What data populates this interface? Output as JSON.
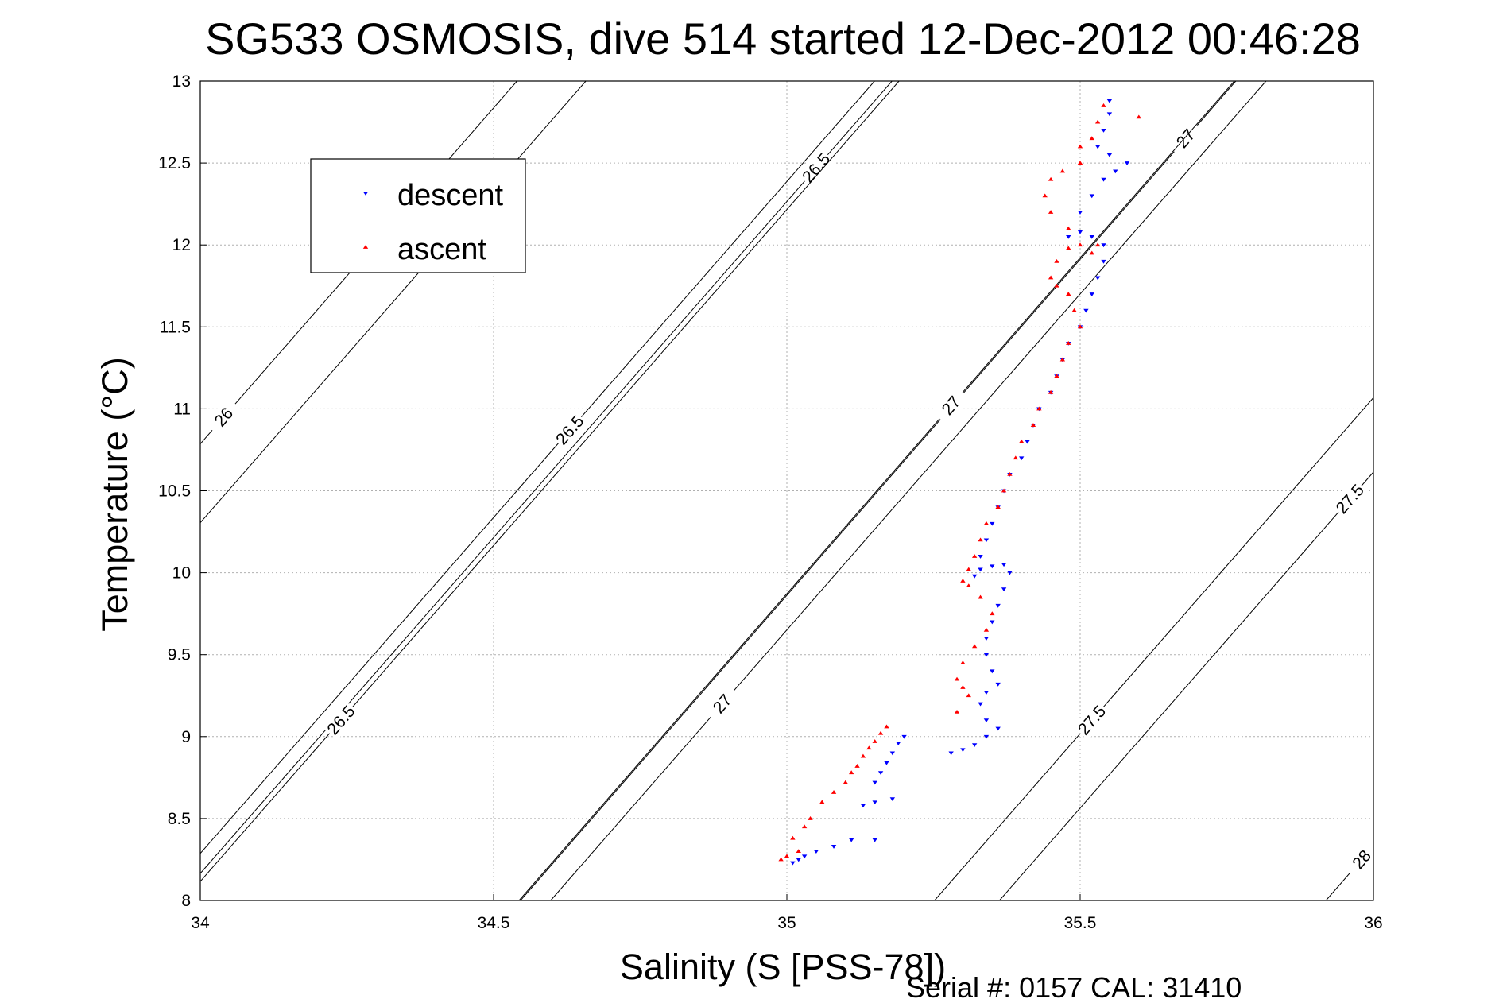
{
  "chart_data": {
    "type": "scatter",
    "title": "SG533 OSMOSIS, dive 514 started 12-Dec-2012 00:46:28",
    "xlabel": "Salinity (S [PSS-78])",
    "ylabel": "Temperature (°C)",
    "xlim": [
      34,
      36
    ],
    "ylim": [
      8,
      13
    ],
    "x_ticks": [
      "34",
      "34.5",
      "35",
      "35.5",
      "36"
    ],
    "y_ticks": [
      "8",
      "8.5",
      "9",
      "9.5",
      "10",
      "10.5",
      "11",
      "11.5",
      "12",
      "12.5",
      "13"
    ],
    "grid": true,
    "legend_position": "top-left",
    "footer": "Serial #: 0157  CAL: 31410",
    "colors": {
      "descent": "#0000ff",
      "ascent": "#ff0000",
      "contour": "#000000",
      "grid": "#b0b0b0"
    },
    "density_contours": [
      {
        "level": "26",
        "labels": [
          [
            34.45,
            12.15
          ],
          [
            34.04,
            10.95
          ]
        ]
      },
      {
        "level": "26.5",
        "labels": [
          [
            35.05,
            12.47
          ],
          [
            34.63,
            10.87
          ],
          [
            34.24,
            9.1
          ]
        ]
      },
      {
        "level": "27",
        "labels": [
          [
            35.68,
            12.65
          ],
          [
            35.28,
            11.02
          ],
          [
            34.89,
            9.2
          ]
        ]
      },
      {
        "level": "27.5",
        "labels": [
          [
            35.96,
            10.45
          ],
          [
            35.52,
            9.1
          ]
        ]
      },
      {
        "level": "28",
        "labels": [
          [
            35.98,
            8.25
          ]
        ]
      }
    ],
    "series": [
      {
        "name": "descent",
        "marker": "triangle-down",
        "points": [
          [
            35.01,
            8.23
          ],
          [
            35.02,
            8.25
          ],
          [
            35.03,
            8.27
          ],
          [
            35.05,
            8.3
          ],
          [
            35.08,
            8.33
          ],
          [
            35.11,
            8.37
          ],
          [
            35.15,
            8.37
          ],
          [
            35.13,
            8.58
          ],
          [
            35.15,
            8.6
          ],
          [
            35.18,
            8.62
          ],
          [
            35.15,
            8.72
          ],
          [
            35.16,
            8.78
          ],
          [
            35.17,
            8.84
          ],
          [
            35.18,
            8.9
          ],
          [
            35.19,
            8.96
          ],
          [
            35.2,
            9.0
          ],
          [
            35.28,
            8.9
          ],
          [
            35.3,
            8.92
          ],
          [
            35.32,
            8.95
          ],
          [
            35.34,
            9.0
          ],
          [
            35.36,
            9.05
          ],
          [
            35.34,
            9.1
          ],
          [
            35.33,
            9.2
          ],
          [
            35.34,
            9.27
          ],
          [
            35.36,
            9.32
          ],
          [
            35.35,
            9.4
          ],
          [
            35.34,
            9.5
          ],
          [
            35.34,
            9.6
          ],
          [
            35.35,
            9.7
          ],
          [
            35.36,
            9.8
          ],
          [
            35.37,
            9.9
          ],
          [
            35.38,
            10.0
          ],
          [
            35.37,
            10.05
          ],
          [
            35.35,
            10.04
          ],
          [
            35.33,
            10.02
          ],
          [
            35.32,
            9.98
          ],
          [
            35.33,
            10.1
          ],
          [
            35.34,
            10.2
          ],
          [
            35.35,
            10.3
          ],
          [
            35.36,
            10.4
          ],
          [
            35.37,
            10.5
          ],
          [
            35.38,
            10.6
          ],
          [
            35.4,
            10.7
          ],
          [
            35.41,
            10.8
          ],
          [
            35.42,
            10.9
          ],
          [
            35.43,
            11.0
          ],
          [
            35.45,
            11.1
          ],
          [
            35.46,
            11.2
          ],
          [
            35.47,
            11.3
          ],
          [
            35.48,
            11.4
          ],
          [
            35.5,
            11.5
          ],
          [
            35.51,
            11.6
          ],
          [
            35.52,
            11.7
          ],
          [
            35.53,
            11.8
          ],
          [
            35.54,
            11.9
          ],
          [
            35.54,
            12.0
          ],
          [
            35.52,
            12.05
          ],
          [
            35.5,
            12.08
          ],
          [
            35.48,
            12.05
          ],
          [
            35.5,
            12.2
          ],
          [
            35.52,
            12.3
          ],
          [
            35.54,
            12.4
          ],
          [
            35.56,
            12.45
          ],
          [
            35.58,
            12.5
          ],
          [
            35.55,
            12.55
          ],
          [
            35.53,
            12.6
          ],
          [
            35.54,
            12.7
          ],
          [
            35.55,
            12.8
          ],
          [
            35.55,
            12.88
          ]
        ]
      },
      {
        "name": "ascent",
        "marker": "triangle-up",
        "points": [
          [
            34.99,
            8.25
          ],
          [
            35.0,
            8.27
          ],
          [
            35.02,
            8.3
          ],
          [
            35.01,
            8.38
          ],
          [
            35.03,
            8.45
          ],
          [
            35.04,
            8.5
          ],
          [
            35.06,
            8.6
          ],
          [
            35.08,
            8.66
          ],
          [
            35.1,
            8.72
          ],
          [
            35.11,
            8.78
          ],
          [
            35.12,
            8.82
          ],
          [
            35.13,
            8.88
          ],
          [
            35.14,
            8.93
          ],
          [
            35.15,
            8.97
          ],
          [
            35.16,
            9.02
          ],
          [
            35.17,
            9.06
          ],
          [
            35.29,
            9.15
          ],
          [
            35.31,
            9.25
          ],
          [
            35.3,
            9.3
          ],
          [
            35.29,
            9.35
          ],
          [
            35.3,
            9.45
          ],
          [
            35.32,
            9.55
          ],
          [
            35.34,
            9.65
          ],
          [
            35.35,
            9.75
          ],
          [
            35.33,
            9.85
          ],
          [
            35.31,
            9.92
          ],
          [
            35.3,
            9.95
          ],
          [
            35.31,
            10.02
          ],
          [
            35.32,
            10.1
          ],
          [
            35.33,
            10.2
          ],
          [
            35.34,
            10.3
          ],
          [
            35.36,
            10.4
          ],
          [
            35.37,
            10.5
          ],
          [
            35.38,
            10.6
          ],
          [
            35.39,
            10.7
          ],
          [
            35.4,
            10.8
          ],
          [
            35.42,
            10.9
          ],
          [
            35.43,
            11.0
          ],
          [
            35.45,
            11.1
          ],
          [
            35.46,
            11.2
          ],
          [
            35.47,
            11.3
          ],
          [
            35.48,
            11.4
          ],
          [
            35.5,
            11.5
          ],
          [
            35.49,
            11.6
          ],
          [
            35.48,
            11.7
          ],
          [
            35.46,
            11.75
          ],
          [
            35.45,
            11.8
          ],
          [
            35.46,
            11.9
          ],
          [
            35.48,
            11.98
          ],
          [
            35.5,
            12.0
          ],
          [
            35.52,
            11.95
          ],
          [
            35.53,
            12.0
          ],
          [
            35.48,
            12.1
          ],
          [
            35.45,
            12.2
          ],
          [
            35.44,
            12.3
          ],
          [
            35.45,
            12.4
          ],
          [
            35.47,
            12.45
          ],
          [
            35.5,
            12.5
          ],
          [
            35.5,
            12.6
          ],
          [
            35.52,
            12.65
          ],
          [
            35.53,
            12.75
          ],
          [
            35.54,
            12.85
          ],
          [
            35.6,
            12.78
          ]
        ]
      }
    ]
  }
}
